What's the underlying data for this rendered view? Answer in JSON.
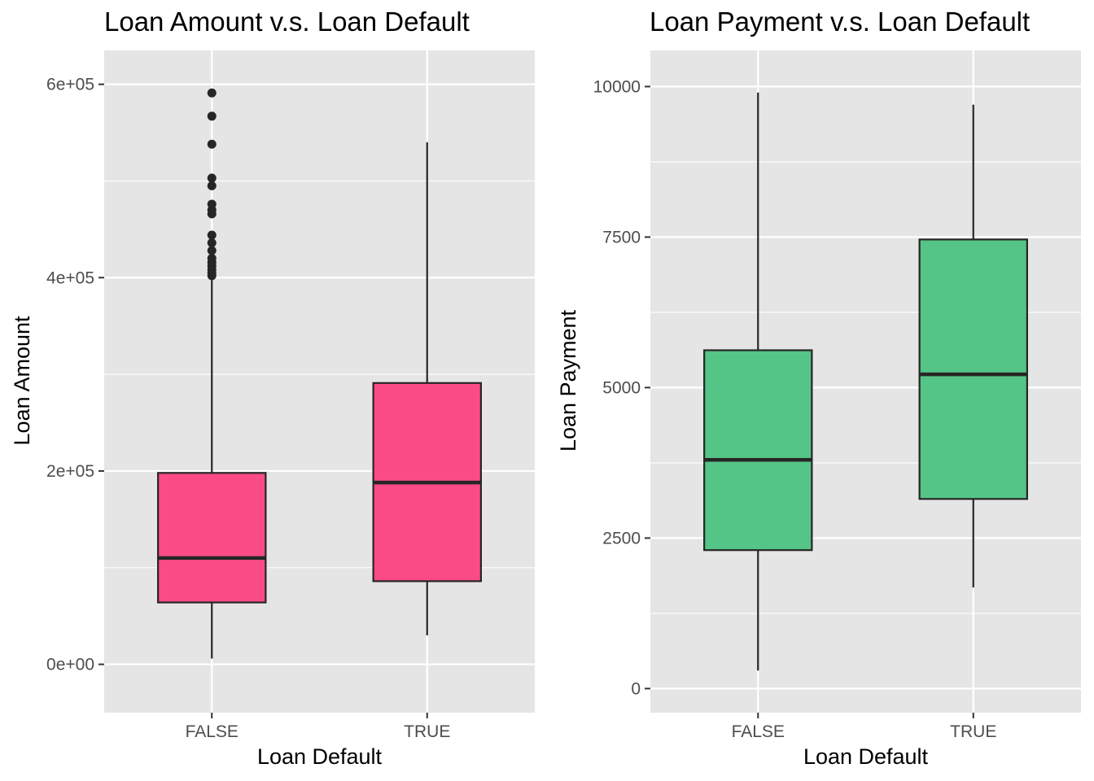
{
  "chart_data": [
    {
      "type": "box",
      "title": "Loan Amount v.s. Loan Default",
      "xlabel": "Loan Default",
      "ylabel": "Loan Amount",
      "categories": [
        "FALSE",
        "TRUE"
      ],
      "ylim": [
        -50000,
        635000
      ],
      "y_ticks": [
        {
          "value": 0,
          "label": "0e+00"
        },
        {
          "value": 200000,
          "label": "2e+05"
        },
        {
          "value": 400000,
          "label": "4e+05"
        },
        {
          "value": 600000,
          "label": "6e+05"
        }
      ],
      "fill_color": "#fb4b86",
      "boxes": [
        {
          "category": "FALSE",
          "whisker_low": 6000,
          "q1": 64000,
          "median": 110000,
          "q3": 198000,
          "whisker_high": 400000,
          "outliers": [
            402000,
            405000,
            408000,
            412000,
            416000,
            420000,
            428000,
            436000,
            444000,
            466000,
            470000,
            476000,
            495000,
            503000,
            538000,
            567000,
            591000
          ]
        },
        {
          "category": "TRUE",
          "whisker_low": 30000,
          "q1": 86000,
          "median": 188000,
          "q3": 291000,
          "whisker_high": 540000,
          "outliers": []
        }
      ]
    },
    {
      "type": "box",
      "title": "Loan Payment v.s. Loan Default",
      "xlabel": "Loan Default",
      "ylabel": "Loan Payment",
      "categories": [
        "FALSE",
        "TRUE"
      ],
      "ylim": [
        -400,
        10600
      ],
      "y_ticks": [
        {
          "value": 0,
          "label": "0"
        },
        {
          "value": 2500,
          "label": "2500"
        },
        {
          "value": 5000,
          "label": "5000"
        },
        {
          "value": 7500,
          "label": "7500"
        },
        {
          "value": 10000,
          "label": "10000"
        }
      ],
      "fill_color": "#55c487",
      "boxes": [
        {
          "category": "FALSE",
          "whisker_low": 300,
          "q1": 2300,
          "median": 3800,
          "q3": 5620,
          "whisker_high": 9900,
          "outliers": []
        },
        {
          "category": "TRUE",
          "whisker_low": 1680,
          "q1": 3150,
          "median": 5220,
          "q3": 7460,
          "whisker_high": 9700,
          "outliers": []
        }
      ]
    }
  ],
  "theme": {
    "panel_color": "#e5e5e5",
    "grid_color": "#ffffff",
    "line_color": "#262626",
    "tick_mark_color": "#333333"
  }
}
